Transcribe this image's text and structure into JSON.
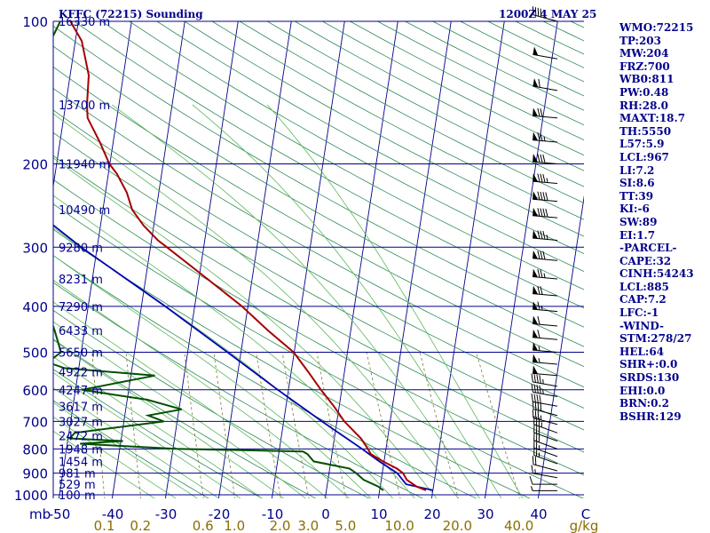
{
  "header": {
    "station": "KFFC (72215) Sounding",
    "time": "1200Z  4 MAY 25"
  },
  "indices": [
    "WMO:72215",
    "TP:203",
    "MW:204",
    "FRZ:700",
    "WB0:811",
    "PW:0.48",
    "RH:28.0",
    "MAXT:18.7",
    "TH:5550",
    "L57:5.9",
    "LCL:967",
    "LI:7.2",
    "SI:8.6",
    "TT:39",
    "KI:-6",
    "SW:89",
    "EI:1.7",
    "-PARCEL-",
    "CAPE:32",
    "CINH:54243",
    "LCL:885",
    "CAP:7.2",
    "LFC:-1",
    "-WIND-",
    "STM:278/27",
    "HEL:64",
    "SHR+:0.0",
    "SRDS:130",
    "EHI:0.0",
    "BRN:0.2",
    "BSHR:129"
  ],
  "colors": {
    "isobar": "#00008b",
    "isotherm": "#00008b",
    "dry_adiabat": "#2e8b57",
    "moist_adiabat": "#5ab85a",
    "mixing_ratio": "#7a7a3c",
    "mixing_ratio_label": "#8b6d00",
    "temperature": "#a50000",
    "dewpoint": "#005000",
    "parcel": "#0000b0",
    "wind_barb": "#000000",
    "text": "#00008b"
  },
  "chart_data": {
    "type": "skew-t",
    "y_scale": "log-pressure",
    "y_unit": "mb",
    "x_unit": "°C",
    "pressure_levels": [
      100,
      200,
      300,
      400,
      500,
      600,
      700,
      800,
      900,
      1000
    ],
    "pressure_axis_label": "mb",
    "temperature_ticks": [
      -50,
      -40,
      -30,
      -20,
      -10,
      0,
      10,
      20,
      30,
      40
    ],
    "temperature_axis_end_label": "C",
    "mixing_ratio_ticks": [
      "0.1",
      "0.2",
      "0.6",
      "1.0",
      "2.0",
      "3.0",
      "5.0",
      "10.0",
      "20.0",
      "40.0"
    ],
    "mixing_ratio_unit": "g/kg",
    "height_labels": [
      {
        "p": 100,
        "label": "16330 m"
      },
      {
        "p": 150,
        "label": "13700 m"
      },
      {
        "p": 200,
        "label": "11940 m"
      },
      {
        "p": 250,
        "label": "10490 m"
      },
      {
        "p": 300,
        "label": "9280 m"
      },
      {
        "p": 350,
        "label": "8231 m"
      },
      {
        "p": 400,
        "label": "7290 m"
      },
      {
        "p": 450,
        "label": "6433 m"
      },
      {
        "p": 500,
        "label": "5650 m"
      },
      {
        "p": 550,
        "label": "4922 m"
      },
      {
        "p": 600,
        "label": "4247 m"
      },
      {
        "p": 650,
        "label": "3617 m"
      },
      {
        "p": 700,
        "label": "3027 m"
      },
      {
        "p": 750,
        "label": "2472 m"
      },
      {
        "p": 800,
        "label": "1948 m"
      },
      {
        "p": 850,
        "label": "1454 m"
      },
      {
        "p": 900,
        "label": "981 m"
      },
      {
        "p": 950,
        "label": "529 m"
      },
      {
        "p": 1000,
        "label": "100 m"
      }
    ],
    "temperature_profile": [
      [
        978,
        18.7
      ],
      [
        960,
        16.8
      ],
      [
        930,
        14.8
      ],
      [
        900,
        13.9
      ],
      [
        880,
        12.6
      ],
      [
        850,
        9.8
      ],
      [
        820,
        7.3
      ],
      [
        800,
        6.6
      ],
      [
        760,
        5.0
      ],
      [
        700,
        1.4
      ],
      [
        650,
        -1.0
      ],
      [
        600,
        -3.9
      ],
      [
        550,
        -6.8
      ],
      [
        500,
        -10.1
      ],
      [
        450,
        -15.5
      ],
      [
        400,
        -21.1
      ],
      [
        350,
        -28.4
      ],
      [
        300,
        -36.9
      ],
      [
        290,
        -38.8
      ],
      [
        270,
        -41.9
      ],
      [
        250,
        -44.5
      ],
      [
        230,
        -46.0
      ],
      [
        210,
        -48.4
      ],
      [
        200,
        -50.1
      ],
      [
        180,
        -52.5
      ],
      [
        160,
        -55.5
      ],
      [
        150,
        -56.0
      ],
      [
        130,
        -56.5
      ],
      [
        110,
        -58.8
      ],
      [
        100,
        -61.5
      ]
    ],
    "dewpoint_profile": [
      [
        978,
        10.7
      ],
      [
        960,
        9.6
      ],
      [
        930,
        6.7
      ],
      [
        900,
        5.1
      ],
      [
        880,
        3.7
      ],
      [
        850,
        -3.2
      ],
      [
        820,
        -4.6
      ],
      [
        810,
        -5.5
      ],
      [
        800,
        -29.4
      ],
      [
        780,
        -47.6
      ],
      [
        770,
        -39.6
      ],
      [
        760,
        -49.7
      ],
      [
        740,
        -48.9
      ],
      [
        700,
        -32.5
      ],
      [
        680,
        -35.6
      ],
      [
        660,
        -29.5
      ],
      [
        630,
        -36.2
      ],
      [
        600,
        -48.8
      ],
      [
        560,
        -35.5
      ],
      [
        540,
        -52.7
      ],
      [
        525,
        -56.0
      ],
      [
        500,
        -53.8
      ],
      [
        450,
        -55.6
      ],
      [
        420,
        -56.9
      ],
      [
        400,
        -60.9
      ],
      [
        350,
        -63.6
      ],
      [
        310,
        -69.5
      ],
      [
        300,
        -71.1
      ],
      [
        280,
        -72.0
      ],
      [
        260,
        -73.6
      ],
      [
        250,
        -72.9
      ],
      [
        230,
        -74.6
      ],
      [
        215,
        -74.1
      ],
      [
        205,
        -75.2
      ],
      [
        200,
        -76.1
      ],
      [
        185,
        -75.0
      ],
      [
        175,
        -74.1
      ],
      [
        160,
        -73.8
      ],
      [
        140,
        -70.6
      ],
      [
        125,
        -68.4
      ],
      [
        115,
        -65.2
      ],
      [
        100,
        -63.4
      ]
    ],
    "parcel_profile": [
      [
        978,
        20.0
      ],
      [
        950,
        14.8
      ],
      [
        900,
        12.8
      ],
      [
        850,
        9.1
      ],
      [
        800,
        5.5
      ],
      [
        700,
        -2.8
      ],
      [
        600,
        -12.0
      ],
      [
        500,
        -22.5
      ],
      [
        400,
        -35.5
      ],
      [
        300,
        -53.0
      ],
      [
        250,
        -63.0
      ],
      [
        200,
        -75.0
      ],
      [
        150,
        -89.0
      ],
      [
        120,
        -99.0
      ],
      [
        100,
        -107.0
      ]
    ],
    "wind_barbs": [
      {
        "p": 980,
        "dir": 270,
        "spd": 5
      },
      {
        "p": 950,
        "dir": 270,
        "spd": 10
      },
      {
        "p": 920,
        "dir": 280,
        "spd": 15
      },
      {
        "p": 890,
        "dir": 285,
        "spd": 20
      },
      {
        "p": 860,
        "dir": 290,
        "spd": 25
      },
      {
        "p": 830,
        "dir": 290,
        "spd": 25
      },
      {
        "p": 800,
        "dir": 290,
        "spd": 30
      },
      {
        "p": 770,
        "dir": 290,
        "spd": 30
      },
      {
        "p": 740,
        "dir": 290,
        "spd": 35
      },
      {
        "p": 710,
        "dir": 285,
        "spd": 35
      },
      {
        "p": 680,
        "dir": 285,
        "spd": 40
      },
      {
        "p": 650,
        "dir": 280,
        "spd": 40
      },
      {
        "p": 620,
        "dir": 280,
        "spd": 45
      },
      {
        "p": 590,
        "dir": 280,
        "spd": 45
      },
      {
        "p": 560,
        "dir": 275,
        "spd": 50
      },
      {
        "p": 530,
        "dir": 275,
        "spd": 55
      },
      {
        "p": 500,
        "dir": 275,
        "spd": 55
      },
      {
        "p": 470,
        "dir": 275,
        "spd": 60
      },
      {
        "p": 440,
        "dir": 275,
        "spd": 60
      },
      {
        "p": 410,
        "dir": 275,
        "spd": 65
      },
      {
        "p": 380,
        "dir": 275,
        "spd": 70
      },
      {
        "p": 350,
        "dir": 275,
        "spd": 75
      },
      {
        "p": 320,
        "dir": 275,
        "spd": 80
      },
      {
        "p": 290,
        "dir": 275,
        "spd": 85
      },
      {
        "p": 260,
        "dir": 275,
        "spd": 90
      },
      {
        "p": 240,
        "dir": 275,
        "spd": 90
      },
      {
        "p": 220,
        "dir": 275,
        "spd": 85
      },
      {
        "p": 200,
        "dir": 275,
        "spd": 80
      },
      {
        "p": 180,
        "dir": 275,
        "spd": 75
      },
      {
        "p": 160,
        "dir": 275,
        "spd": 70
      },
      {
        "p": 140,
        "dir": 280,
        "spd": 60
      },
      {
        "p": 120,
        "dir": 280,
        "spd": 50
      },
      {
        "p": 100,
        "dir": 285,
        "spd": 40
      }
    ]
  }
}
